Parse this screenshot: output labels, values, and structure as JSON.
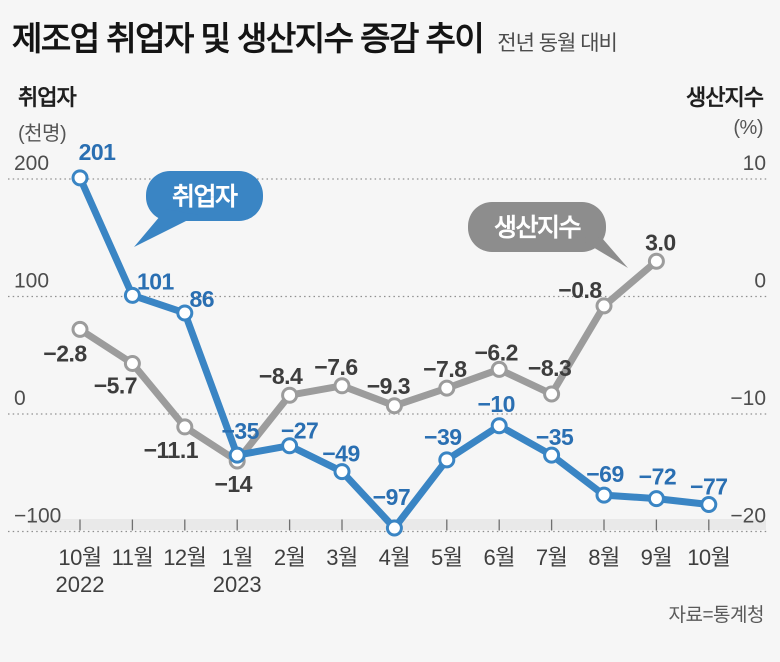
{
  "header": {
    "title": "제조업 취업자 및 생산지수 증감 추이",
    "subtitle": "전년 동월 대비"
  },
  "left_axis_header": {
    "label": "취업자",
    "unit": "(천명)"
  },
  "right_axis_header": {
    "label": "생산지수",
    "unit": "(%)"
  },
  "legend": {
    "employment": "취업자",
    "production": "생산지수"
  },
  "source": "자료=통계청",
  "colors": {
    "employment_line": "#3a85c4",
    "employment_label": "#2a6fb2",
    "production_line": "#9c9c9c",
    "production_bubble": "#8d8d8d",
    "grid": "#8f8f8f",
    "tick_text": "#4d4d4d",
    "month_text": "#3f3f3f",
    "background": "#f6f6f6"
  },
  "chart_data": {
    "type": "line",
    "title": "제조업 취업자 및 생산지수 증감 추이",
    "subtitle": "전년 동월 대비",
    "source": "자료=통계청",
    "categories": [
      "10월",
      "11월",
      "12월",
      "1월",
      "2월",
      "3월",
      "4월",
      "5월",
      "6월",
      "7월",
      "8월",
      "9월",
      "10월"
    ],
    "category_years": [
      {
        "index": 0,
        "year": "2022"
      },
      {
        "index": 3,
        "year": "2023"
      }
    ],
    "grid": {
      "horizontal": true,
      "style": "dotted"
    },
    "legend_position": "inline-callouts",
    "left_axis": {
      "title": "취업자",
      "unit": "천명",
      "ticks": [
        200,
        100,
        0,
        -100
      ],
      "tick_labels": [
        "200",
        "100",
        "0",
        "−100"
      ],
      "range": [
        -100,
        200
      ]
    },
    "right_axis": {
      "title": "생산지수",
      "unit": "%",
      "ticks": [
        10,
        0,
        -10,
        -20
      ],
      "tick_labels": [
        "10",
        "0",
        "−10",
        "−20"
      ],
      "range": [
        -20,
        10
      ]
    },
    "series": [
      {
        "key": "employment",
        "name": "취업자",
        "axis": "left",
        "color": "#3a85c4",
        "label_color": "#2a6fb2",
        "values": [
          201,
          101,
          86,
          -35,
          -27,
          -49,
          -97,
          -39,
          -10,
          -35,
          -69,
          -72,
          -77
        ],
        "labels": [
          "201",
          "101",
          "86",
          "−35",
          "−27",
          "−49",
          "−97",
          "−39",
          "−10",
          "−35",
          "−69",
          "−72",
          "−77"
        ],
        "label_offsets": [
          [
            17,
            -26
          ],
          [
            23,
            -14
          ],
          [
            17,
            -14
          ],
          [
            3,
            -24
          ],
          [
            10,
            -15
          ],
          [
            -1,
            -18
          ],
          [
            -3,
            -31
          ],
          [
            -4,
            -23
          ],
          [
            -3,
            -22
          ],
          [
            3,
            -18
          ],
          [
            1,
            -21
          ],
          [
            1,
            -22
          ],
          [
            0,
            -18
          ]
        ]
      },
      {
        "key": "production",
        "name": "생산지수",
        "axis": "right",
        "color": "#9c9c9c",
        "label_color": "#3d3d3d",
        "values": [
          -2.8,
          -5.7,
          -11.1,
          -14,
          -8.4,
          -7.6,
          -9.3,
          -7.8,
          -6.2,
          -8.3,
          -0.8,
          3.0
        ],
        "labels": [
          "−2.8",
          "−5.7",
          "−11.1",
          "−14",
          "−8.4",
          "−7.6",
          "−9.3",
          "−7.8",
          "−6.2",
          "−8.3",
          "−0.8",
          "3.0"
        ],
        "label_offsets": [
          [
            -15,
            24
          ],
          [
            -17,
            22
          ],
          [
            -14,
            23
          ],
          [
            -4,
            23
          ],
          [
            -9,
            -19
          ],
          [
            -6,
            -19
          ],
          [
            -6,
            -20
          ],
          [
            -2,
            -19
          ],
          [
            -3,
            -17
          ],
          [
            -2,
            -26
          ],
          [
            -24,
            -16
          ],
          [
            4,
            -19
          ]
        ]
      }
    ]
  }
}
